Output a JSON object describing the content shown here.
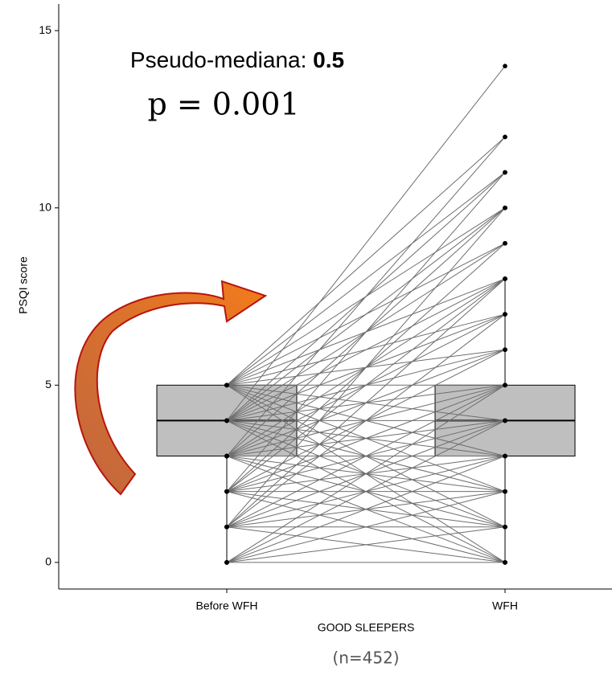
{
  "chart_data": {
    "type": "paired-box",
    "annotation_label": "Pseudo-mediana:",
    "annotation_value": "0.5",
    "p_value": "p = 0.001",
    "x_label": "GOOD SLEEPERS",
    "y_label": "PSQI score",
    "subtitle": "(n=452)",
    "categories": [
      "Before WFH",
      "WFH"
    ],
    "ylim": [
      -0.75,
      15.75
    ],
    "yticks": [
      0,
      5,
      10,
      15
    ],
    "box_color": "#bfbfbf",
    "line_color": "#6e6e6e",
    "boxes": [
      {
        "whisker_low": 0,
        "q1": 3,
        "median": 4,
        "q3": 5,
        "whisker_high": 5
      },
      {
        "whisker_low": 0,
        "q1": 3,
        "median": 4,
        "q3": 5,
        "whisker_high": 8
      }
    ],
    "pairs": [
      [
        4,
        14
      ],
      [
        5,
        12
      ],
      [
        3,
        12
      ],
      [
        5,
        11
      ],
      [
        4,
        11
      ],
      [
        2,
        11
      ],
      [
        5,
        10
      ],
      [
        4,
        10
      ],
      [
        3,
        10
      ],
      [
        1,
        10
      ],
      [
        5,
        9
      ],
      [
        4,
        9
      ],
      [
        2,
        9
      ],
      [
        5,
        8
      ],
      [
        4,
        8
      ],
      [
        3,
        8
      ],
      [
        2,
        8
      ],
      [
        1,
        8
      ],
      [
        5,
        7
      ],
      [
        4,
        7
      ],
      [
        3,
        7
      ],
      [
        1,
        7
      ],
      [
        5,
        6
      ],
      [
        4,
        6
      ],
      [
        3,
        6
      ],
      [
        2,
        6
      ],
      [
        5,
        5
      ],
      [
        4,
        5
      ],
      [
        3,
        5
      ],
      [
        2,
        5
      ],
      [
        1,
        5
      ],
      [
        0,
        5
      ],
      [
        5,
        4
      ],
      [
        4,
        4
      ],
      [
        3,
        4
      ],
      [
        2,
        4
      ],
      [
        1,
        4
      ],
      [
        0,
        4
      ],
      [
        5,
        3
      ],
      [
        4,
        3
      ],
      [
        3,
        3
      ],
      [
        2,
        3
      ],
      [
        1,
        3
      ],
      [
        0,
        3
      ],
      [
        5,
        2
      ],
      [
        4,
        2
      ],
      [
        3,
        2
      ],
      [
        2,
        2
      ],
      [
        1,
        2
      ],
      [
        0,
        2
      ],
      [
        5,
        1
      ],
      [
        4,
        1
      ],
      [
        3,
        1
      ],
      [
        2,
        1
      ],
      [
        1,
        1
      ],
      [
        0,
        1
      ],
      [
        5,
        0
      ],
      [
        4,
        0
      ],
      [
        3,
        0
      ],
      [
        2,
        0
      ],
      [
        1,
        0
      ],
      [
        0,
        0
      ]
    ]
  }
}
